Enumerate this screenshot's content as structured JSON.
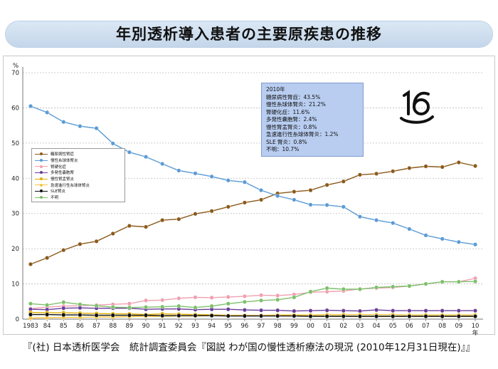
{
  "header": {
    "title": "年別透析導入患者の主要原疾患の推移"
  },
  "source": "『(社) 日本透析医学会　統計調査委員会『図説 わが国の慢性透析療法の現況 (2010年12月31日現在)』』",
  "infobox": {
    "lines": [
      "2010年",
      "糖尿病性腎症：43.5%",
      "慢性糸球体腎炎：21.2%",
      "腎硬化症：11.6%",
      "多発性嚢胞腎：2.4%",
      "慢性腎盂腎炎：0.8%",
      "急速進行性糸球体腎炎：1.2%",
      "SLE 腎炎：0.8%",
      "不明：10.7%"
    ]
  },
  "logo": {
    "text": "16",
    "icon": "badge-16-icon"
  },
  "colors": {
    "diabetic": "#8b5a1a",
    "glomerulo": "#5b9bd5",
    "nephrosclerosis": "#f0a0b0",
    "polycystic": "#6a3d9a",
    "pyelo": "#e0b000",
    "rpgn": "#f5c542",
    "sle": "#111111",
    "unknown": "#7cc06a"
  },
  "chart_data": {
    "type": "line",
    "title": "年別透析導入患者の主要原疾患の推移",
    "ylabel": "%",
    "xlabel": "年",
    "ylim": [
      0,
      70
    ],
    "yticks": [
      0,
      10,
      20,
      30,
      40,
      50,
      60,
      70
    ],
    "categories": [
      "1983",
      "84",
      "85",
      "86",
      "87",
      "88",
      "89",
      "90",
      "91",
      "92",
      "93",
      "94",
      "95",
      "96",
      "97",
      "98",
      "99",
      "00",
      "01",
      "02",
      "03",
      "04",
      "05",
      "06",
      "07",
      "08",
      "09",
      "10"
    ],
    "series": [
      {
        "name": "糖尿病性腎症",
        "color": "#8b5a1a",
        "values": [
          15.6,
          17.4,
          19.6,
          21.3,
          22.1,
          24.3,
          26.5,
          26.2,
          28.1,
          28.4,
          29.9,
          30.7,
          31.9,
          33.1,
          33.9,
          35.7,
          36.2,
          36.6,
          38.1,
          39.1,
          41.0,
          41.3,
          42.0,
          42.9,
          43.4,
          43.2,
          44.5,
          43.5
        ]
      },
      {
        "name": "慢性糸球体腎炎",
        "color": "#5b9bd5",
        "values": [
          60.5,
          58.7,
          56.0,
          54.8,
          54.2,
          49.9,
          47.4,
          46.1,
          44.1,
          42.2,
          41.4,
          40.5,
          39.4,
          38.9,
          36.6,
          35.0,
          33.9,
          32.5,
          32.4,
          31.9,
          29.1,
          28.1,
          27.3,
          25.6,
          23.8,
          22.8,
          21.9,
          21.2
        ]
      },
      {
        "name": "腎硬化症",
        "color": "#f0a0b0",
        "values": [
          3.0,
          3.4,
          3.7,
          3.8,
          4.0,
          4.2,
          4.4,
          5.3,
          5.4,
          5.9,
          6.2,
          6.1,
          6.3,
          6.5,
          6.8,
          6.7,
          7.0,
          7.6,
          7.8,
          8.0,
          8.6,
          8.8,
          9.0,
          9.4,
          10.0,
          10.6,
          10.6,
          11.6
        ]
      },
      {
        "name": "多発性嚢胞腎",
        "color": "#6a3d9a",
        "values": [
          2.8,
          2.7,
          3.1,
          3.2,
          3.1,
          3.1,
          3.1,
          2.8,
          2.9,
          2.9,
          2.7,
          2.8,
          2.8,
          2.6,
          2.5,
          2.5,
          2.3,
          2.4,
          2.5,
          2.4,
          2.3,
          2.6,
          2.4,
          2.4,
          2.4,
          2.4,
          2.4,
          2.4
        ]
      },
      {
        "name": "慢性腎盂腎炎",
        "color": "#e0b000",
        "values": [
          1.9,
          1.8,
          1.8,
          1.7,
          1.6,
          1.5,
          1.5,
          1.3,
          1.5,
          1.4,
          1.3,
          1.2,
          1.1,
          1.1,
          1.0,
          1.0,
          1.0,
          0.9,
          0.9,
          0.9,
          0.8,
          0.8,
          0.8,
          0.8,
          0.8,
          0.8,
          0.8,
          0.8
        ]
      },
      {
        "name": "急速進行性糸球体腎炎",
        "color": "#f5c542",
        "values": [
          0.3,
          0.4,
          0.5,
          0.5,
          0.6,
          0.6,
          0.7,
          0.8,
          0.8,
          0.9,
          0.9,
          1.0,
          1.0,
          1.1,
          1.1,
          1.2,
          1.2,
          1.2,
          1.3,
          1.3,
          1.3,
          1.3,
          1.3,
          1.2,
          1.2,
          1.2,
          1.2,
          1.2
        ]
      },
      {
        "name": "SLE腎炎",
        "color": "#111111",
        "values": [
          1.3,
          1.3,
          1.2,
          1.2,
          1.1,
          1.1,
          1.1,
          1.1,
          1.0,
          1.0,
          1.0,
          1.0,
          0.9,
          0.9,
          0.9,
          0.9,
          0.9,
          0.8,
          0.8,
          0.8,
          0.8,
          0.8,
          0.8,
          0.8,
          0.8,
          0.8,
          0.8,
          0.8
        ]
      },
      {
        "name": "不明",
        "color": "#7cc06a",
        "values": [
          4.4,
          4.0,
          4.8,
          4.2,
          3.8,
          3.4,
          3.3,
          3.4,
          3.5,
          3.7,
          3.3,
          3.7,
          4.4,
          4.9,
          5.3,
          5.5,
          6.2,
          7.8,
          8.8,
          8.5,
          8.5,
          9.0,
          9.2,
          9.4,
          10.0,
          10.6,
          10.6,
          10.7
        ]
      }
    ]
  }
}
